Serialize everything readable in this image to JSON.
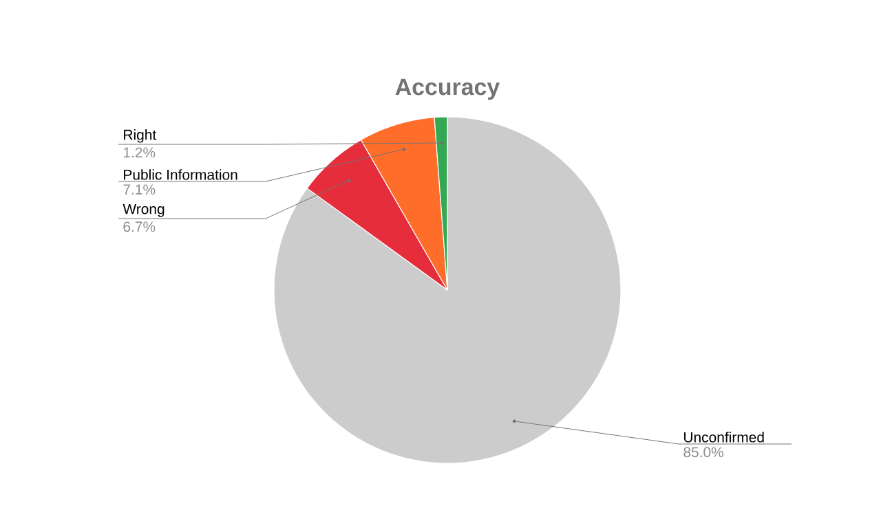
{
  "chart_data": {
    "type": "pie",
    "title": "Accuracy",
    "categories": [
      "Unconfirmed",
      "Wrong",
      "Public Information",
      "Right"
    ],
    "values": [
      85.0,
      6.7,
      7.1,
      1.2
    ],
    "value_labels": [
      "85.0%",
      "6.7%",
      "7.1%",
      "1.2%"
    ],
    "colors": [
      "#cccccc",
      "#e52d3b",
      "#ff6d2b",
      "#34a853"
    ]
  }
}
